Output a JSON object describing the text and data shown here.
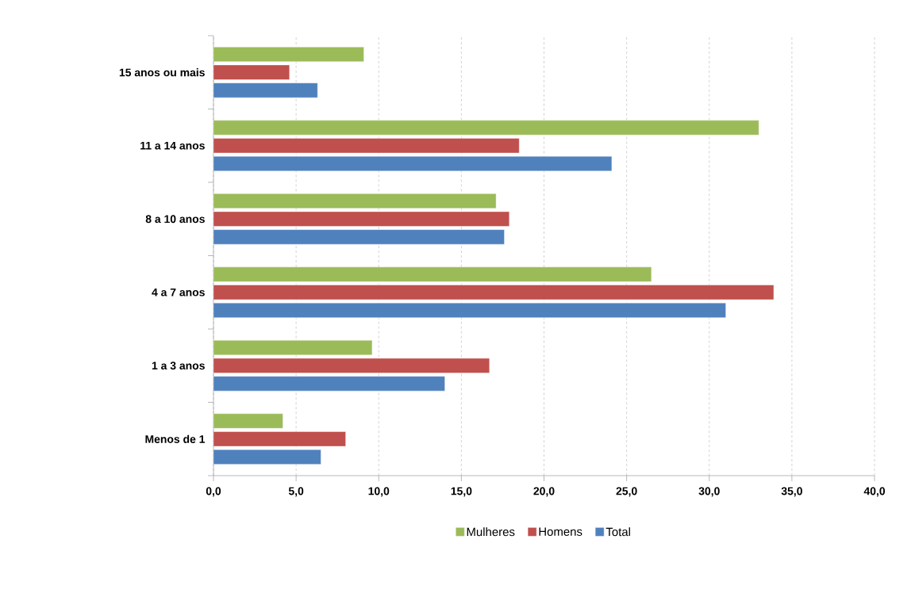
{
  "chart_data": {
    "type": "bar",
    "orientation": "horizontal",
    "categories": [
      "15 anos ou mais",
      "11 a 14 anos",
      "8 a 10 anos",
      "4 a 7 anos",
      "1 a 3 anos",
      "Menos de 1"
    ],
    "series": [
      {
        "name": "Mulheres",
        "color": "#9bbb59",
        "values": [
          9.1,
          33.0,
          17.1,
          26.5,
          9.6,
          4.2
        ]
      },
      {
        "name": "Homens",
        "color": "#c0504d",
        "values": [
          4.6,
          18.5,
          17.9,
          33.9,
          16.7,
          8.0
        ]
      },
      {
        "name": "Total",
        "color": "#4f81bd",
        "values": [
          6.3,
          24.1,
          17.6,
          31.0,
          14.0,
          6.5
        ]
      }
    ],
    "xlim": [
      0,
      40
    ],
    "xticks": [
      {
        "value": 0,
        "label": "0,0"
      },
      {
        "value": 5,
        "label": "5,0"
      },
      {
        "value": 10,
        "label": "10,0"
      },
      {
        "value": 15,
        "label": "15,0"
      },
      {
        "value": 20,
        "label": "20,0"
      },
      {
        "value": 25,
        "label": "25,0"
      },
      {
        "value": 30,
        "label": "30,0"
      },
      {
        "value": 35,
        "label": "35,0"
      },
      {
        "value": 40,
        "label": "40,0"
      }
    ],
    "grid": "x",
    "legend": "bottom"
  }
}
